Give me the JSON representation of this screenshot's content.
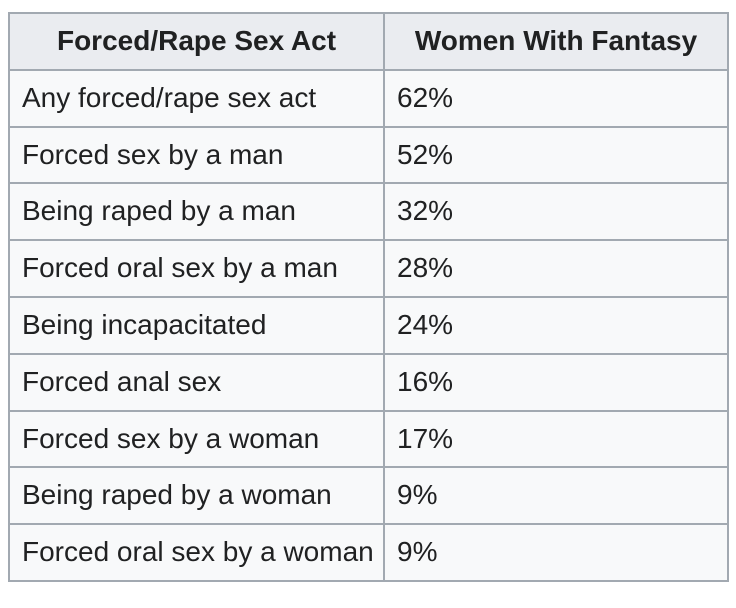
{
  "table": {
    "columns": [
      "Forced/Rape Sex Act",
      "Women With Fantasy"
    ],
    "rows": [
      {
        "act": "Any forced/rape sex act",
        "percentage": "62%"
      },
      {
        "act": "Forced sex by a man",
        "percentage": "52%"
      },
      {
        "act": "Being raped by a man",
        "percentage": "32%"
      },
      {
        "act": "Forced oral sex by a man",
        "percentage": "28%"
      },
      {
        "act": "Being incapacitated",
        "percentage": "24%"
      },
      {
        "act": "Forced anal sex",
        "percentage": "16%"
      },
      {
        "act": "Forced sex by a woman",
        "percentage": "17%"
      },
      {
        "act": "Being raped by a woman",
        "percentage": "9%"
      },
      {
        "act": "Forced oral sex by a woman",
        "percentage": "9%"
      }
    ]
  },
  "colors": {
    "header_bg": "#eaecf0",
    "row_bg": "#f8f9fa",
    "border": "#a2a9b1",
    "text": "#202122",
    "page_bg": "#ffffff"
  },
  "chart_data": {
    "type": "table",
    "title": "",
    "columns": [
      "Forced/Rape Sex Act",
      "Women With Fantasy"
    ],
    "categories": [
      "Any forced/rape sex act",
      "Forced sex by a man",
      "Being raped by a man",
      "Forced oral sex by a man",
      "Being incapacitated",
      "Forced anal sex",
      "Forced sex by a woman",
      "Being raped by a woman",
      "Forced oral sex by a woman"
    ],
    "values": [
      62,
      52,
      32,
      28,
      24,
      16,
      17,
      9,
      9
    ],
    "value_unit": "%"
  }
}
